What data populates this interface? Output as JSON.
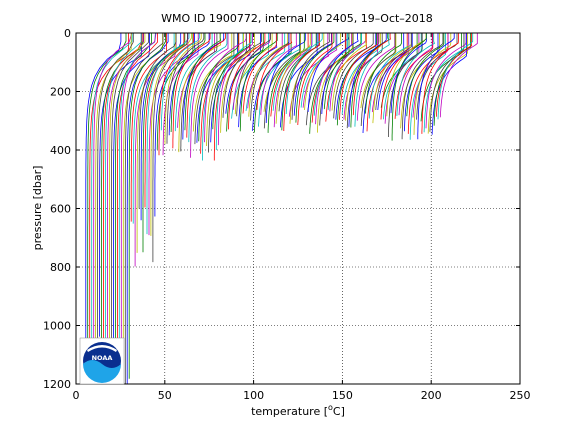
{
  "chart_data": {
    "type": "line",
    "title": "WMO ID 1900772, internal ID 2405, 19–Oct–2018",
    "xlabel_prefix": "temperature [",
    "xlabel_sup": "o",
    "xlabel_suffix": "C]",
    "ylabel": "pressure [dbar]",
    "xlim": [
      0,
      250
    ],
    "ylim": [
      1200,
      0
    ],
    "y_reversed": true,
    "grid": true,
    "grid_style": "dotted",
    "xticks": [
      0,
      50,
      100,
      150,
      200,
      250
    ],
    "yticks": [
      0,
      200,
      400,
      600,
      800,
      1000,
      1200
    ],
    "xtick_labels": [
      "0",
      "50",
      "100",
      "150",
      "200",
      "250"
    ],
    "ytick_labels": [
      "0",
      "200",
      "400",
      "600",
      "800",
      "1000",
      "1200"
    ],
    "series_note": "Waterfall of temperature profiles, each offset along x; profile depth varies per cycle",
    "profiles": {
      "count": 180,
      "x_offset_start": 5,
      "x_offset_end": 204,
      "surface_temperature_offset": 22,
      "max_pressure_by_group": [
        {
          "offset_range": [
            5,
            30
          ],
          "max_pressure": 1200
        },
        {
          "offset_range": [
            30,
            45
          ],
          "max_pressure": 700
        },
        {
          "offset_range": [
            45,
            80
          ],
          "max_pressure": 380
        },
        {
          "offset_range": [
            80,
            170
          ],
          "max_pressure": 300
        },
        {
          "offset_range": [
            170,
            204
          ],
          "max_pressure": 320
        }
      ],
      "colors": [
        "#0000ff",
        "#008000",
        "#ff0000",
        "#00bfbf",
        "#bf00bf",
        "#bfbf00",
        "#404040"
      ]
    },
    "logo": {
      "text": "NOAA",
      "position": "bottom-left"
    }
  }
}
